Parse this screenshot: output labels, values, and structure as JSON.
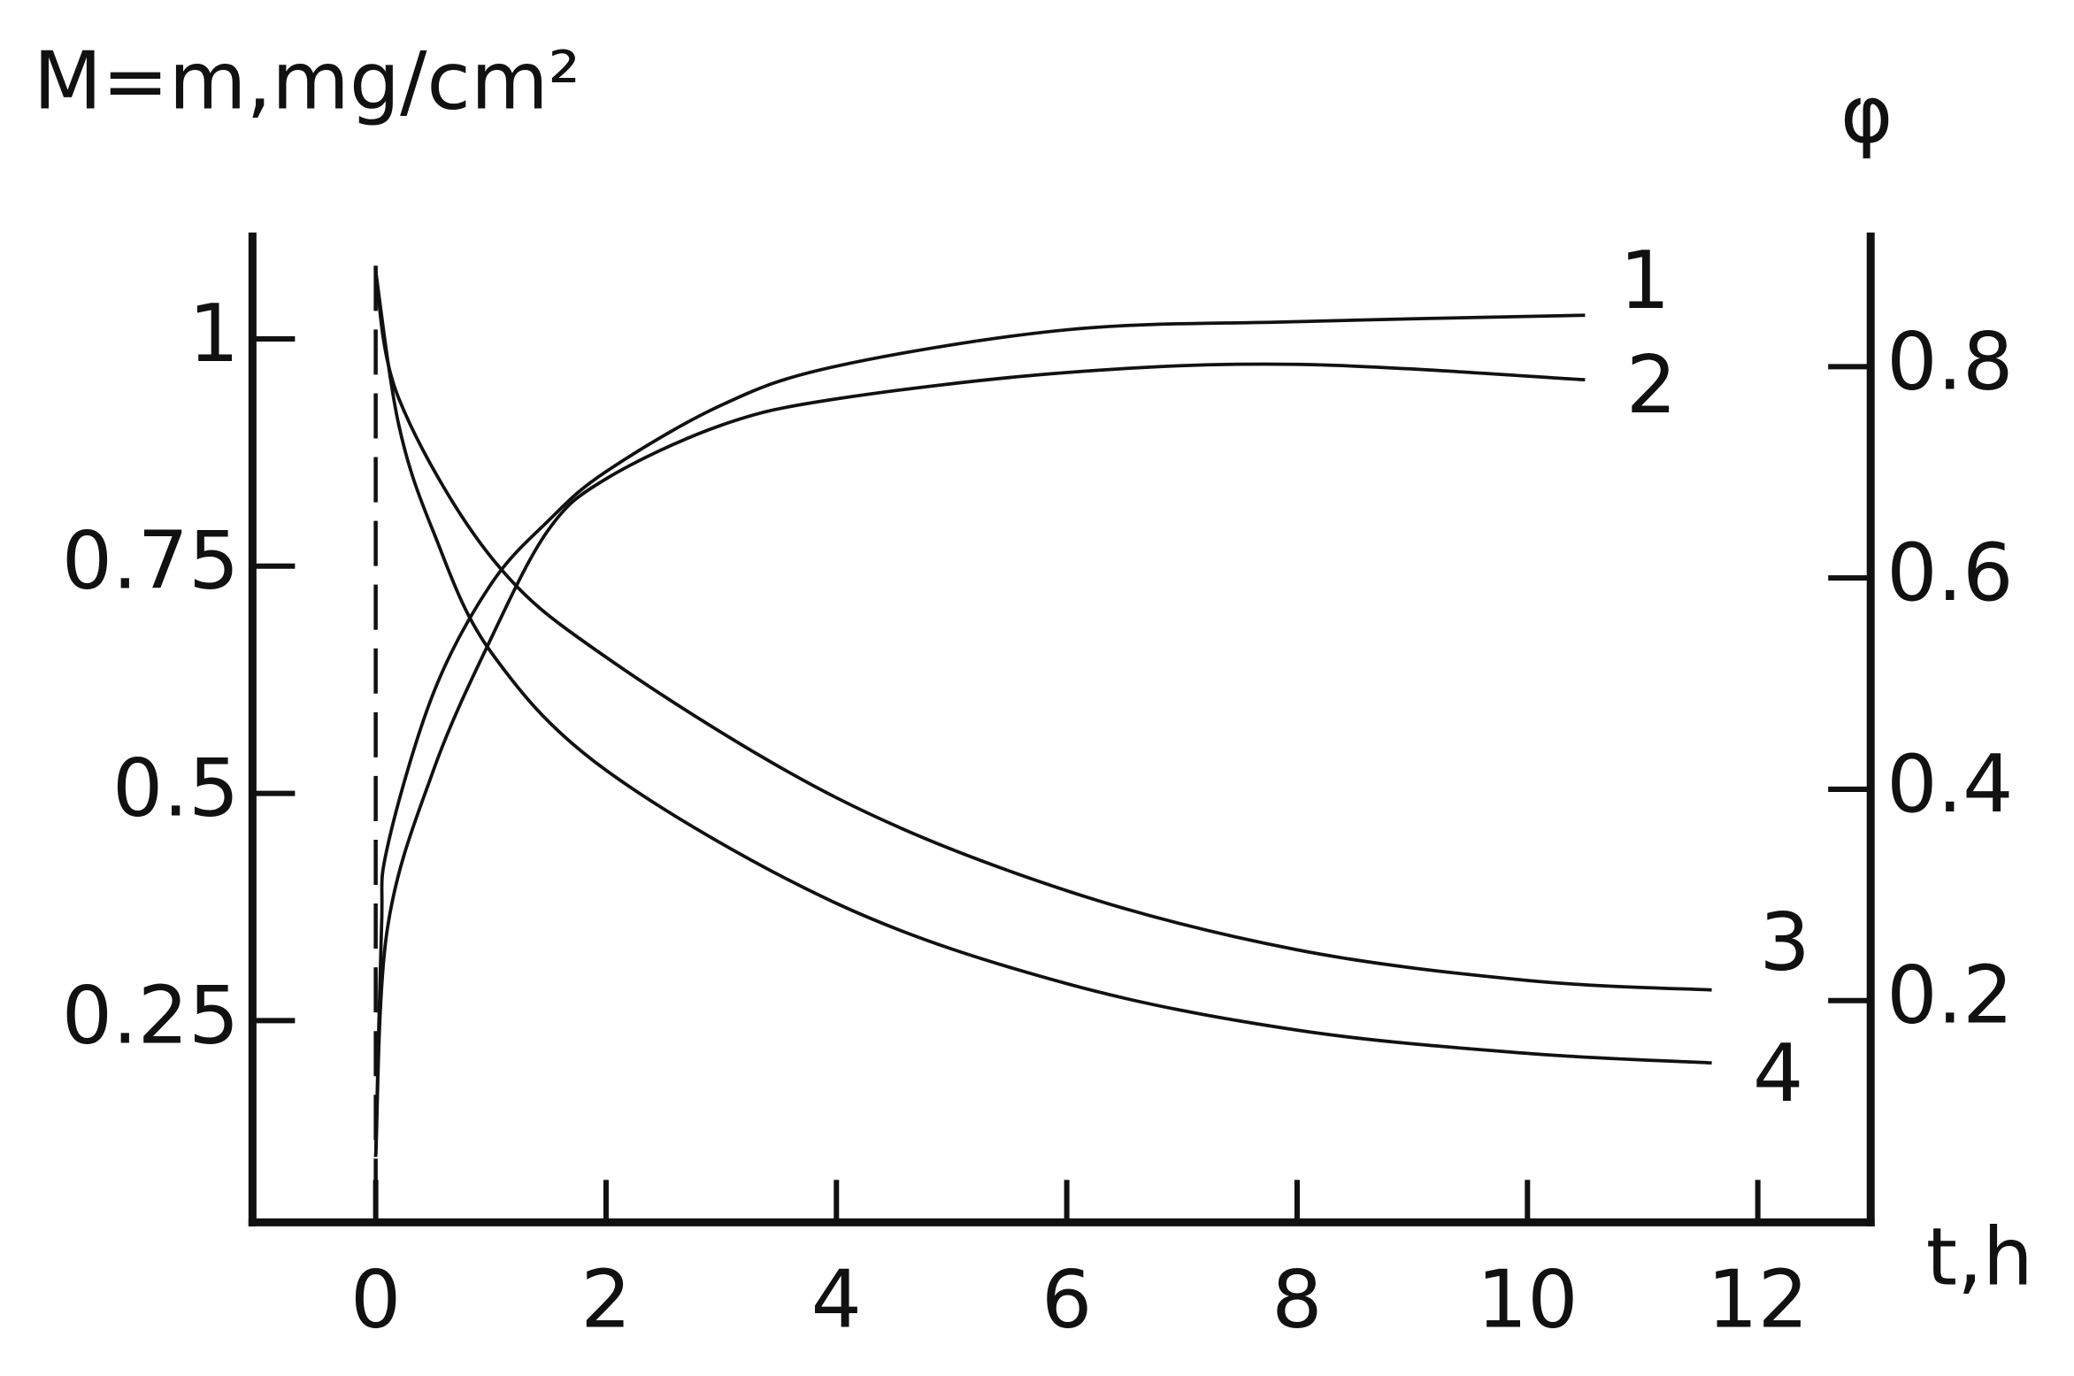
{
  "chart_data": {
    "type": "line",
    "title": "M=m,mg/cm²",
    "y2_label": "φ",
    "x_label": "t,h",
    "xlim": [
      -1.07,
      12.98
    ],
    "xticks": [
      0,
      2,
      4,
      6,
      8,
      10,
      12
    ],
    "ylim": [
      0.028,
      1.117
    ],
    "yticks": [
      0.25,
      0.5,
      0.75,
      1
    ],
    "y2lim": [
      -0.01,
      0.927
    ],
    "y2ticks": [
      0.2,
      0.4,
      0.6,
      0.8
    ],
    "series": [
      {
        "name": "1",
        "color": "#111111",
        "axis": "y",
        "x": [
          0,
          0.05,
          0.1,
          0.5,
          1,
          1.5,
          2,
          3,
          4,
          6,
          8,
          10.5
        ],
        "values": [
          0.1,
          0.35,
          0.44,
          0.61,
          0.73,
          0.8,
          0.854,
          0.927,
          0.97,
          1.01,
          1.019,
          1.026
        ]
      },
      {
        "name": "2",
        "color": "#111111",
        "axis": "y",
        "x": [
          0,
          0.1,
          0.5,
          1,
          1.5,
          2,
          3,
          4,
          6,
          8,
          10.5
        ],
        "values": [
          0.1,
          0.35,
          0.525,
          0.67,
          0.79,
          0.846,
          0.905,
          0.934,
          0.963,
          0.972,
          0.955
        ]
      },
      {
        "name": "3",
        "color": "#111111",
        "axis": "y2",
        "x": [
          0,
          0.2,
          1,
          2,
          4,
          6,
          8,
          10,
          11.6
        ],
        "values": [
          0.89,
          0.77,
          0.62,
          0.525,
          0.392,
          0.304,
          0.248,
          0.219,
          0.21
        ]
      },
      {
        "name": "4",
        "color": "#111111",
        "axis": "y2",
        "x": [
          0,
          0.2,
          0.5,
          1,
          2,
          4,
          6,
          8,
          10,
          11.6
        ],
        "values": [
          0.89,
          0.745,
          0.644,
          0.53,
          0.418,
          0.292,
          0.216,
          0.172,
          0.15,
          0.141
        ]
      }
    ]
  }
}
